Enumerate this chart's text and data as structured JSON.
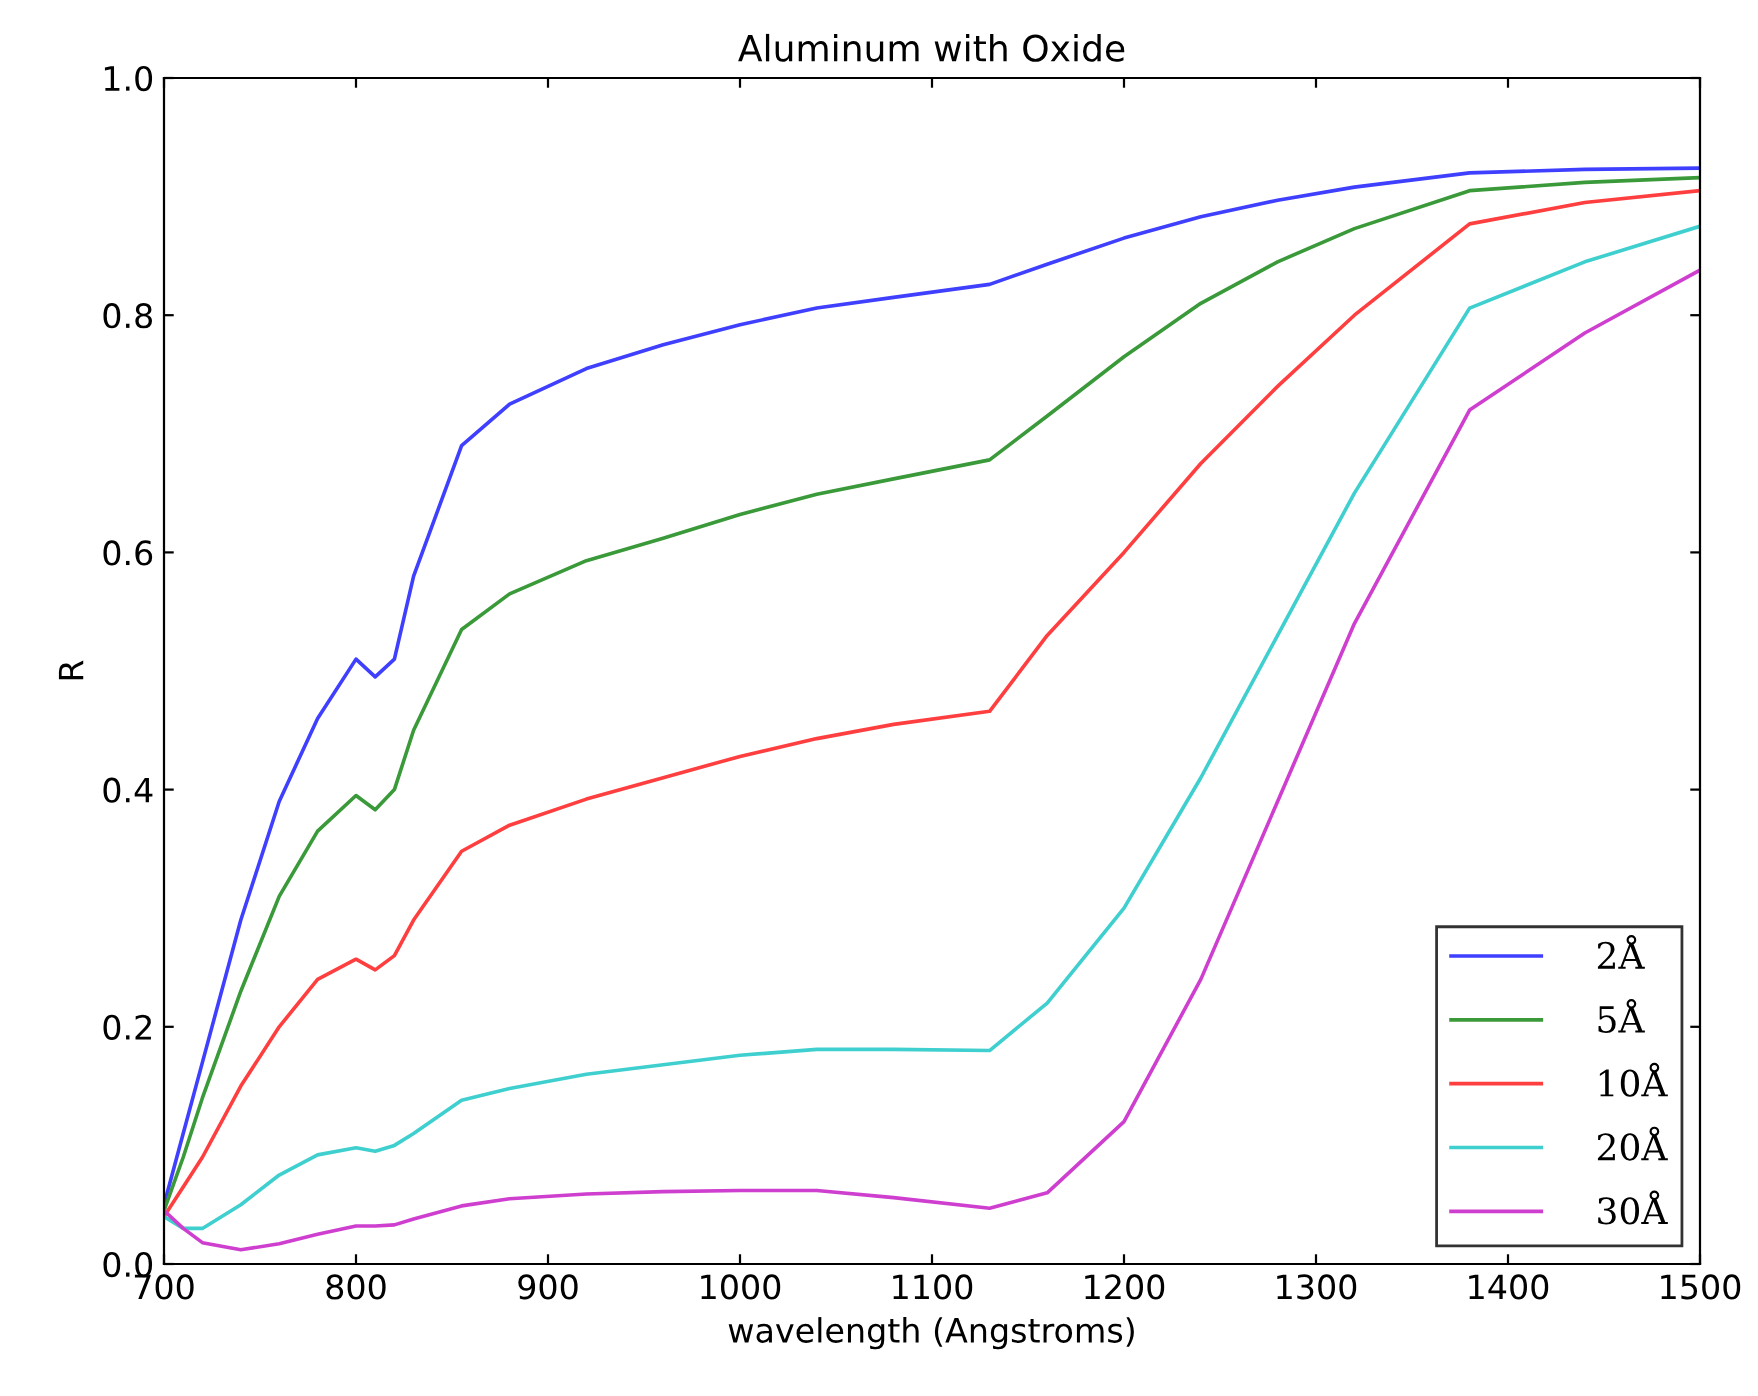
{
  "chart_data": {
    "type": "line",
    "title": "Aluminum with Oxide",
    "xlabel": "wavelength (Angstroms)",
    "ylabel": "R",
    "x": [
      700,
      710,
      720,
      740,
      760,
      780,
      800,
      810,
      820,
      830,
      855,
      880,
      920,
      960,
      1000,
      1040,
      1080,
      1130,
      1160,
      1200,
      1240,
      1280,
      1320,
      1380,
      1440,
      1500
    ],
    "series": [
      {
        "name": "2Å",
        "color": "#3f3fff",
        "values": [
          0.05,
          0.11,
          0.17,
          0.29,
          0.39,
          0.46,
          0.51,
          0.495,
          0.51,
          0.58,
          0.69,
          0.725,
          0.755,
          0.775,
          0.792,
          0.806,
          0.815,
          0.826,
          0.843,
          0.865,
          0.883,
          0.897,
          0.908,
          0.92,
          0.923,
          0.924
        ]
      },
      {
        "name": "5Å",
        "color": "#3a9a3a",
        "values": [
          0.045,
          0.09,
          0.14,
          0.23,
          0.31,
          0.365,
          0.395,
          0.383,
          0.4,
          0.45,
          0.535,
          0.565,
          0.593,
          0.612,
          0.632,
          0.649,
          0.662,
          0.678,
          0.715,
          0.765,
          0.81,
          0.845,
          0.873,
          0.905,
          0.912,
          0.916
        ]
      },
      {
        "name": "10Å",
        "color": "#ff3f3f",
        "values": [
          0.04,
          0.065,
          0.09,
          0.15,
          0.2,
          0.24,
          0.257,
          0.248,
          0.26,
          0.29,
          0.348,
          0.37,
          0.392,
          0.41,
          0.428,
          0.443,
          0.455,
          0.466,
          0.53,
          0.6,
          0.675,
          0.74,
          0.8,
          0.877,
          0.895,
          0.905
        ]
      },
      {
        "name": "20Å",
        "color": "#3fcfcf",
        "values": [
          0.04,
          0.03,
          0.03,
          0.05,
          0.075,
          0.092,
          0.098,
          0.095,
          0.1,
          0.11,
          0.138,
          0.148,
          0.16,
          0.168,
          0.176,
          0.181,
          0.181,
          0.18,
          0.22,
          0.3,
          0.41,
          0.53,
          0.65,
          0.806,
          0.845,
          0.875
        ]
      },
      {
        "name": "30Å",
        "color": "#cf3fcf",
        "values": [
          0.045,
          0.03,
          0.018,
          0.012,
          0.017,
          0.025,
          0.032,
          0.032,
          0.033,
          0.038,
          0.049,
          0.055,
          0.059,
          0.061,
          0.062,
          0.062,
          0.056,
          0.047,
          0.06,
          0.12,
          0.24,
          0.39,
          0.54,
          0.72,
          0.785,
          0.838
        ]
      }
    ],
    "xlim": [
      700,
      1500
    ],
    "xticks": [
      700,
      800,
      900,
      1000,
      1100,
      1200,
      1300,
      1400,
      1500
    ],
    "ylim": [
      0.0,
      1.0
    ],
    "yticks": [
      {
        "value": 0.0,
        "label": "0.0"
      },
      {
        "value": 0.2,
        "label": "0.2"
      },
      {
        "value": 0.4,
        "label": "0.4"
      },
      {
        "value": 0.6,
        "label": "0.6"
      },
      {
        "value": 0.8,
        "label": "0.8"
      },
      {
        "value": 1.0,
        "label": "1.0"
      }
    ],
    "legend": "lower right",
    "grid": false,
    "marker": "none",
    "line_style": "solid"
  }
}
